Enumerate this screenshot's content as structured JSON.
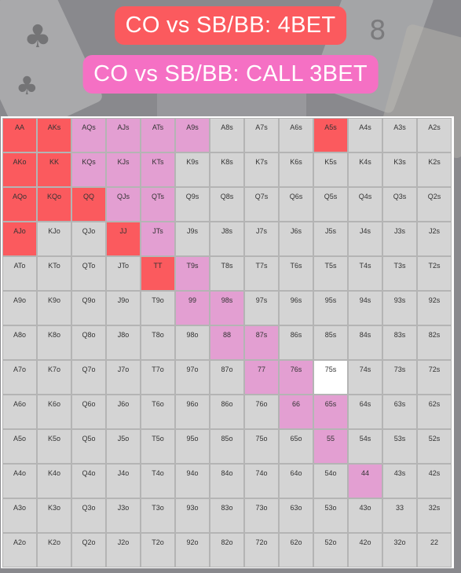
{
  "titles": {
    "fourbet": "CO vs SB/BB: 4BET",
    "call": "CO vs SB/BB: CALL 3BET"
  },
  "colors": {
    "fourbet": "#fb5a5e",
    "call": "#e39fd2",
    "fold": "#d4d4d4",
    "unmarked": "#ffffff",
    "title_fourbet_bg": "#fb5a5e",
    "title_call_bg": "#f570c4"
  },
  "ranks": [
    "A",
    "K",
    "Q",
    "J",
    "T",
    "9",
    "8",
    "7",
    "6",
    "5",
    "4",
    "3",
    "2"
  ],
  "fourbet_hands": [
    "AA",
    "AKs",
    "AKo",
    "KK",
    "AQo",
    "KQo",
    "QQ",
    "AJo",
    "JJ",
    "TT",
    "A5s"
  ],
  "call_hands": [
    "AQs",
    "AJs",
    "ATs",
    "A9s",
    "KQs",
    "KJs",
    "KTs",
    "QJs",
    "QTs",
    "JTs",
    "T9s",
    "99",
    "98s",
    "88",
    "87s",
    "77",
    "76s",
    "66",
    "65s",
    "55",
    "44"
  ],
  "white_hands": [
    "75s"
  ]
}
